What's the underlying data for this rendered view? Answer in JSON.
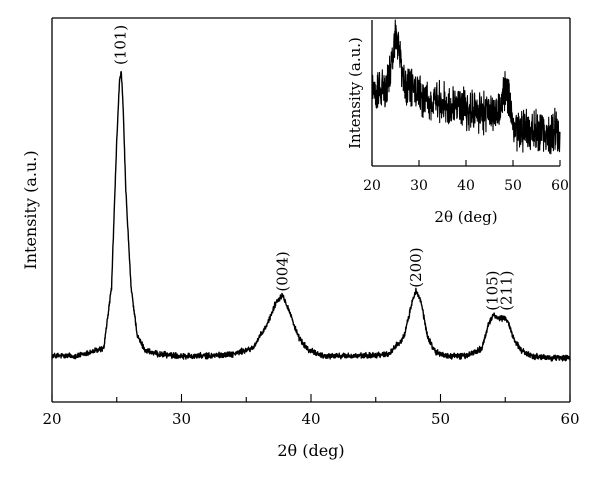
{
  "chart_data": [
    {
      "type": "line",
      "title": "",
      "xlabel": "2θ (deg)",
      "ylabel": "Intensity (a.u.)",
      "xlim": [
        20,
        60
      ],
      "ylim": [
        0,
        1
      ],
      "y_ticks_shown": false,
      "xticks": [
        20,
        30,
        40,
        50,
        60
      ],
      "grid": false,
      "series": [
        {
          "x": [
            20,
            22,
            24,
            24.6,
            25.0,
            25.2,
            25.35,
            25.5,
            25.7,
            26.1,
            26.6,
            27.2,
            28,
            30,
            32,
            34,
            35.5,
            36.6,
            37.3,
            37.8,
            38.3,
            39.0,
            39.8,
            41,
            44,
            46,
            47.2,
            47.8,
            48.1,
            48.5,
            49.0,
            49.6,
            50.5,
            52,
            53.2,
            53.7,
            54.1,
            54.5,
            54.9,
            55.2,
            55.6,
            56.2,
            57,
            58,
            60
          ],
          "y": [
            0.12,
            0.12,
            0.14,
            0.3,
            0.68,
            0.83,
            0.86,
            0.76,
            0.55,
            0.3,
            0.17,
            0.135,
            0.125,
            0.12,
            0.12,
            0.125,
            0.14,
            0.2,
            0.26,
            0.28,
            0.24,
            0.17,
            0.135,
            0.12,
            0.12,
            0.125,
            0.17,
            0.26,
            0.29,
            0.26,
            0.17,
            0.13,
            0.12,
            0.12,
            0.14,
            0.2,
            0.23,
            0.215,
            0.22,
            0.21,
            0.17,
            0.135,
            0.12,
            0.115,
            0.115
          ]
        }
      ],
      "annotations": [
        {
          "text": "(101)",
          "x": 25.3,
          "y": 0.93
        },
        {
          "text": "(004)",
          "x": 37.8,
          "y": 0.34
        },
        {
          "text": "(200)",
          "x": 48.1,
          "y": 0.35
        },
        {
          "text": "(105)",
          "x": 54.0,
          "y": 0.29
        },
        {
          "text": "(211)",
          "x": 55.1,
          "y": 0.29
        }
      ]
    },
    {
      "type": "line",
      "title": "",
      "xlabel": "2θ (deg)",
      "ylabel": "Intensity (a.u.)",
      "xlim": [
        20,
        60
      ],
      "ylim": [
        0,
        1
      ],
      "y_ticks_shown": false,
      "xticks": [
        20,
        30,
        40,
        50,
        60
      ],
      "grid": false,
      "series": [
        {
          "x": [
            20,
            21,
            22,
            23,
            24,
            24.6,
            25.0,
            25.5,
            26,
            26.8,
            28,
            30,
            32,
            34,
            36,
            38,
            40,
            42,
            44,
            46,
            47.2,
            48.0,
            48.6,
            49.2,
            50,
            51,
            52,
            54,
            56,
            58,
            60
          ],
          "y": [
            0.52,
            0.5,
            0.52,
            0.55,
            0.65,
            0.8,
            0.92,
            0.85,
            0.7,
            0.6,
            0.55,
            0.5,
            0.47,
            0.45,
            0.43,
            0.42,
            0.4,
            0.38,
            0.36,
            0.34,
            0.38,
            0.48,
            0.56,
            0.44,
            0.28,
            0.24,
            0.25,
            0.24,
            0.24,
            0.23,
            0.24
          ]
        }
      ]
    }
  ]
}
